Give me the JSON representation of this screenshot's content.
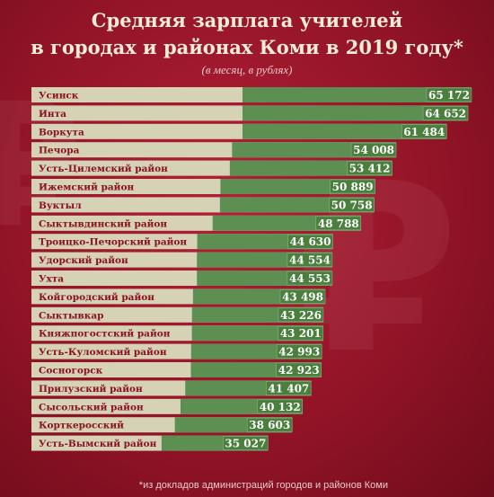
{
  "header": {
    "title_line1": "Средняя зарплата учителей",
    "title_line2": "в городах и районах Коми в 2019 году*",
    "subtitle": "(в месяц, в рублях)"
  },
  "footnote": "*из докладов администраций городов и районов Коми",
  "colors": {
    "background": "#9b1a2d",
    "bar_track": "#d6d2b6",
    "bar_fill": "#5e8f52",
    "value_box": "#4a7f3e",
    "value_text": "#ffffff",
    "label_text": "#8a1023"
  },
  "chart_data": {
    "type": "bar",
    "orientation": "horizontal",
    "title": "Средняя зарплата учителей в городах и районах Коми в 2019 году*",
    "subtitle": "(в месяц, в рублях)",
    "categories": [
      "Усинск",
      "Инта",
      "Воркута",
      "Печора",
      "Усть-Цилемский район",
      "Ижемский район",
      "Вуктыл",
      "Сыктывдинский район",
      "Троицко-Печорский район",
      "Удорский район",
      "Ухта",
      "Койгородский район",
      "Сыктывкар",
      "Княжпогостский район",
      "Усть-Куломский район",
      "Сосногорск",
      "Прилузский район",
      "Сысольский район",
      "Корткеросский",
      "Усть-Вымский район"
    ],
    "values": [
      65172,
      64652,
      61484,
      54008,
      53412,
      50889,
      50758,
      48788,
      44630,
      44554,
      44553,
      43498,
      43226,
      43201,
      42993,
      42923,
      41407,
      40132,
      38603,
      35027
    ],
    "value_labels": [
      "65 172",
      "64 652",
      "61 484",
      "54 008",
      "53 412",
      "50 889",
      "50 758",
      "48 788",
      "44 630",
      "44 554",
      "44 553",
      "43 498",
      "43 226",
      "43 201",
      "42 993",
      "42 923",
      "41 407",
      "40 132",
      "38 603",
      "35 027"
    ],
    "xlim": [
      0,
      65172
    ],
    "xlabel": "",
    "ylabel": "",
    "grid": false,
    "legend": "none"
  }
}
